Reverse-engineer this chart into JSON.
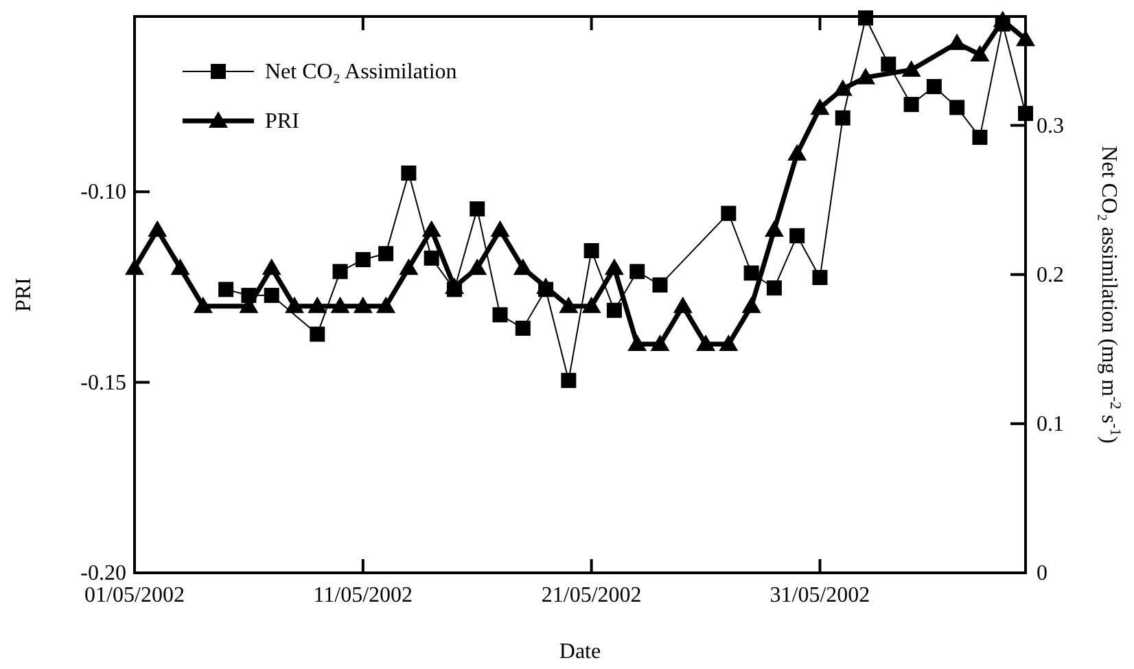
{
  "chart_data": {
    "type": "line",
    "xlabel": "Date",
    "ylabel": "PRI",
    "y2label": "Net CO₂ assimilation (mg m$^{-2}$ s$^{-1}$)",
    "xlim": [
      "2002-05-01",
      "2002-06-09"
    ],
    "xticks": [
      {
        "value": "2002-05-01",
        "label": "01/05/2002"
      },
      {
        "value": "2002-05-11",
        "label": "11/05/2002"
      },
      {
        "value": "2002-05-21",
        "label": "21/05/2002"
      },
      {
        "value": "2002-05-31",
        "label": "31/05/2002"
      }
    ],
    "ylim": [
      -0.2,
      -0.054
    ],
    "yticks": [
      {
        "value": -0.2,
        "label": "-0.20"
      },
      {
        "value": -0.15,
        "label": "-0.15"
      },
      {
        "value": -0.1,
        "label": "-0.10"
      }
    ],
    "y2lim": [
      0,
      0.373
    ],
    "y2ticks": [
      0,
      0.1,
      0.2,
      0.3
    ],
    "legend": "top left",
    "line_style": "solid",
    "series": [
      {
        "name": "Net CO₂ Assimilation",
        "color": "#000000",
        "axis": "y2",
        "marker": "square",
        "x": [
          "2002-05-05",
          "2002-05-06",
          "2002-05-07",
          "2002-05-09",
          "2002-05-10",
          "2002-05-11",
          "2002-05-12",
          "2002-05-13",
          "2002-05-14",
          "2002-05-15",
          "2002-05-16",
          "2002-05-17",
          "2002-05-18",
          "2002-05-19",
          "2002-05-20",
          "2002-05-21",
          "2002-05-22",
          "2002-05-23",
          "2002-05-24",
          "2002-05-27",
          "2002-05-28",
          "2002-05-29",
          "2002-05-30",
          "2002-05-31",
          "2002-06-01",
          "2002-06-02",
          "2002-06-03",
          "2002-06-04",
          "2002-06-05",
          "2002-06-06",
          "2002-06-07",
          "2002-06-08",
          "2002-06-09"
        ],
        "values": [
          0.19,
          0.186,
          0.186,
          0.16,
          0.202,
          0.21,
          0.214,
          0.268,
          0.211,
          0.19,
          0.244,
          0.173,
          0.164,
          0.19,
          0.129,
          0.216,
          0.176,
          0.202,
          0.193,
          0.241,
          0.201,
          0.191,
          0.226,
          0.198,
          0.305,
          0.372,
          0.341,
          0.314,
          0.326,
          0.312,
          0.292,
          0.368,
          0.308
        ]
      },
      {
        "name": "PRI",
        "color": "#000000",
        "marker": "triangle",
        "x": [
          "2002-05-01",
          "2002-05-02",
          "2002-05-03",
          "2002-05-04",
          "2002-05-06",
          "2002-05-07",
          "2002-05-08",
          "2002-05-09",
          "2002-05-10",
          "2002-05-11",
          "2002-05-12",
          "2002-05-13",
          "2002-05-14",
          "2002-05-15",
          "2002-05-16",
          "2002-05-17",
          "2002-05-18",
          "2002-05-19",
          "2002-05-20",
          "2002-05-21",
          "2002-05-22",
          "2002-05-23",
          "2002-05-24",
          "2002-05-25",
          "2002-05-26",
          "2002-05-27",
          "2002-05-28",
          "2002-05-29",
          "2002-05-30",
          "2002-05-31",
          "2002-06-01",
          "2002-06-02",
          "2002-06-04",
          "2002-06-06",
          "2002-06-07",
          "2002-06-08",
          "2002-06-09"
        ],
        "values": [
          -0.12,
          -0.11,
          -0.12,
          -0.13,
          -0.13,
          -0.12,
          -0.13,
          -0.13,
          -0.13,
          -0.13,
          -0.13,
          -0.12,
          -0.11,
          -0.125,
          -0.12,
          -0.11,
          -0.12,
          -0.125,
          -0.13,
          -0.13,
          -0.12,
          -0.14,
          -0.14,
          -0.13,
          -0.14,
          -0.14,
          -0.13,
          -0.11,
          -0.09,
          -0.078,
          -0.073,
          -0.07,
          -0.068,
          -0.061,
          -0.064,
          -0.055,
          -0.06
        ]
      }
    ]
  }
}
